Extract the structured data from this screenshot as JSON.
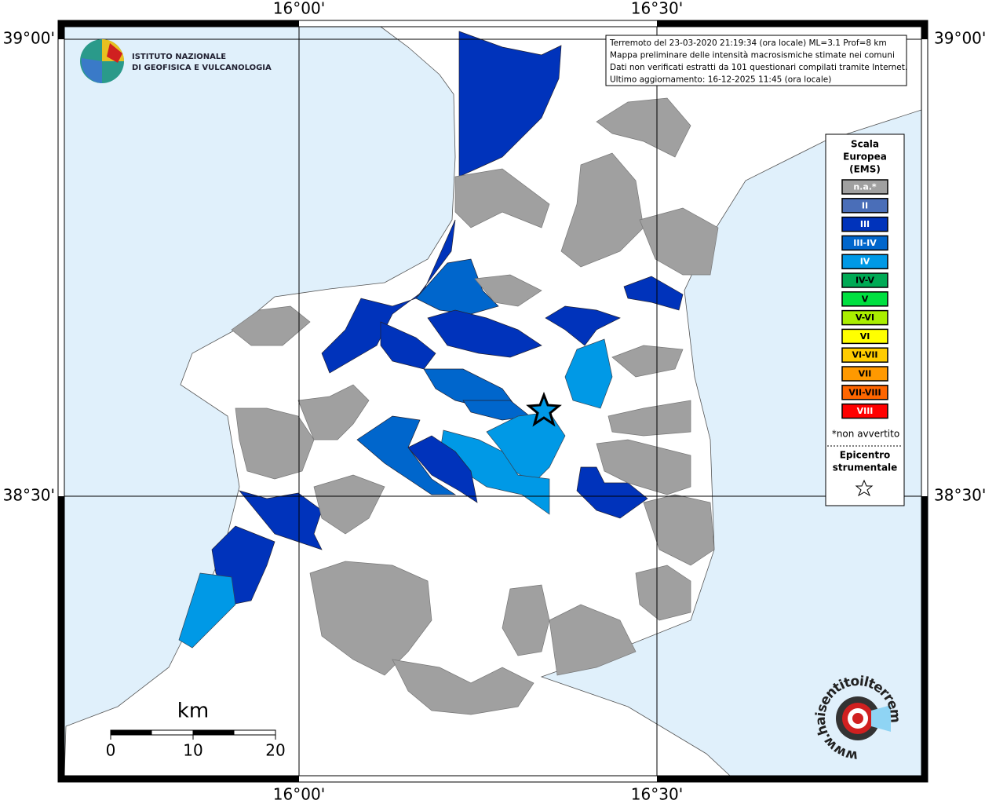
{
  "map": {
    "lon_ticks": [
      {
        "value": 16,
        "label": "16°00'"
      },
      {
        "value": 16.5,
        "label": "16°30'"
      }
    ],
    "lat_ticks": [
      {
        "value": 39,
        "label": "39°00'"
      },
      {
        "value": 38.5,
        "label": "38°30'"
      }
    ],
    "logo": {
      "line1": "ISTITUTO NAZIONALE",
      "line2": "DI GEOFISICA E VULCANOLOGIA"
    },
    "info": [
      "Terremoto del 23-03-2020 21:19:34 (ora locale) ML=3.1 Prof=8 km",
      "Mappa preliminare delle intensità macrosismiche stimate nei comuni",
      "Dati non verificati estratti da 101 questionari compilati tramite Internet.",
      "Ultimo aggiornamento: 16-12-2025 11:45 (ora locale)"
    ],
    "legend": {
      "title": [
        "Scala",
        "Europea",
        "(EMS)"
      ],
      "items": [
        {
          "label": "n.a.*",
          "color": "#a0a0a0",
          "text_color": "#ffffff"
        },
        {
          "label": "II",
          "color": "#4a6eb8",
          "text_color": "#ffffff"
        },
        {
          "label": "III",
          "color": "#0033bb",
          "text_color": "#ffffff"
        },
        {
          "label": "III-IV",
          "color": "#0066cc",
          "text_color": "#ffffff"
        },
        {
          "label": "IV",
          "color": "#0099e6",
          "text_color": "#ffffff"
        },
        {
          "label": "IV-V",
          "color": "#00aa55",
          "text_color": "#000000"
        },
        {
          "label": "V",
          "color": "#00e040",
          "text_color": "#000000"
        },
        {
          "label": "V-VI",
          "color": "#aaee00",
          "text_color": "#000000"
        },
        {
          "label": "VI",
          "color": "#ffff00",
          "text_color": "#000000"
        },
        {
          "label": "VI-VII",
          "color": "#ffcc00",
          "text_color": "#000000"
        },
        {
          "label": "VII",
          "color": "#ff9900",
          "text_color": "#000000"
        },
        {
          "label": "VII-VIII",
          "color": "#ff6600",
          "text_color": "#000000"
        },
        {
          "label": "VIII",
          "color": "#ff0000",
          "text_color": "#ffffff"
        }
      ],
      "note": "*non avvertito",
      "epicenter": [
        "Epicentro",
        "strumentale"
      ]
    },
    "scale": {
      "unit": "km",
      "ticks": [
        0,
        10,
        20
      ]
    },
    "site": "www.haisentitoilterremoto.it"
  }
}
